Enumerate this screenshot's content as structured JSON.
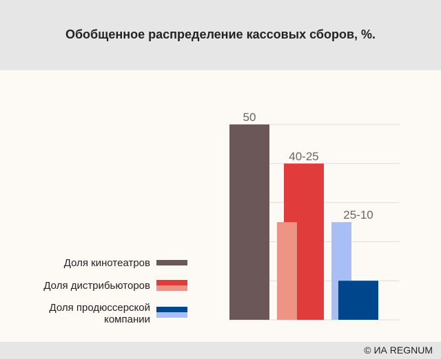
{
  "chart_data": {
    "type": "range-bar",
    "title": "Обобщенное распределение кассовых сборов, %.",
    "source": "© ИА REGNUM",
    "ylim": [
      0,
      50
    ],
    "yticks": [
      0,
      10,
      20,
      30,
      40,
      50
    ],
    "grid": true,
    "series": [
      {
        "name": "Доля кинотеатров",
        "values": [
          50
        ],
        "colors": [
          "#6b5757"
        ],
        "value_label": "50"
      },
      {
        "name": "Доля дистрибьюторов",
        "values": [
          40,
          25
        ],
        "colors": [
          "#e03c3c",
          "#ee9484"
        ],
        "value_label": "40-25"
      },
      {
        "name": "Доля продюссерской компании",
        "values": [
          10,
          25
        ],
        "colors": [
          "#00468c",
          "#a8bff5"
        ],
        "value_label": "25-10"
      }
    ]
  }
}
